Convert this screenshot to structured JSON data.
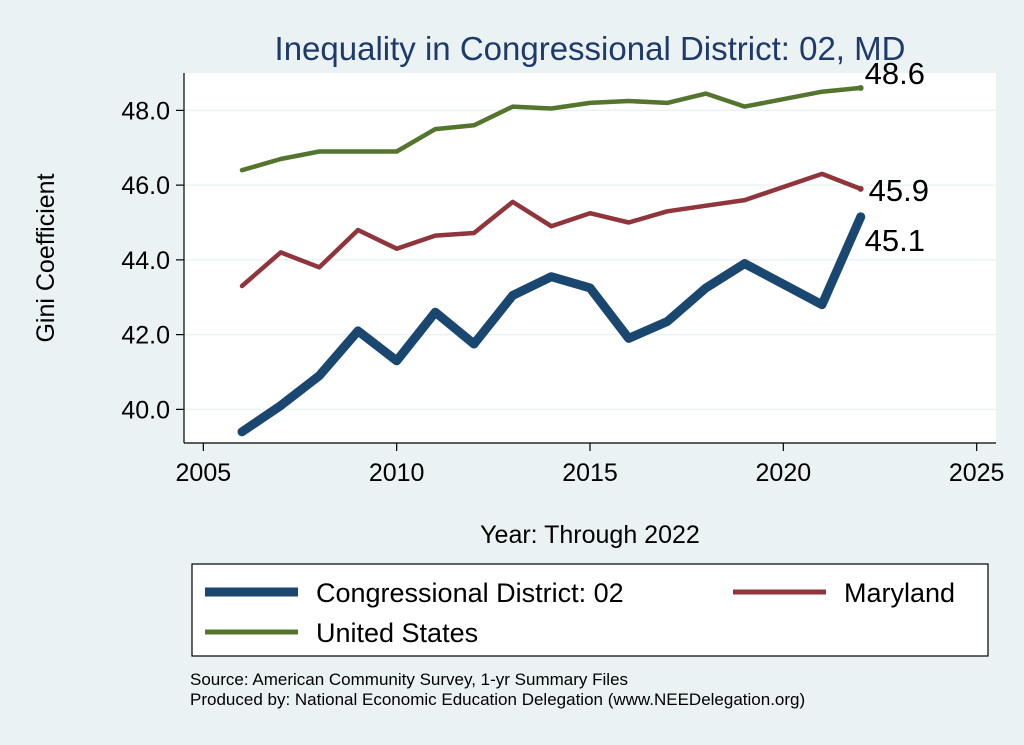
{
  "chart_data": {
    "type": "line",
    "title": "Inequality in Congressional District:  02, MD",
    "xlabel": "Year: Through 2022",
    "ylabel": "Gini Coefficient",
    "xlim": [
      2004.5,
      2025.5
    ],
    "ylim": [
      39.1,
      49.0
    ],
    "x_ticks": [
      2005,
      2010,
      2015,
      2020,
      2025
    ],
    "y_ticks": [
      40.0,
      42.0,
      44.0,
      46.0,
      48.0
    ],
    "y_tick_labels": [
      "40.0",
      "42.0",
      "44.0",
      "46.0",
      "48.0"
    ],
    "grid": true,
    "x": [
      2006,
      2007,
      2008,
      2009,
      2010,
      2011,
      2012,
      2013,
      2014,
      2015,
      2016,
      2017,
      2018,
      2019,
      2021,
      2022
    ],
    "series": [
      {
        "name": "Congressional District:  02",
        "color": "#1a476f",
        "values": [
          39.4,
          40.1,
          40.9,
          42.1,
          41.3,
          42.6,
          41.75,
          43.05,
          43.55,
          43.25,
          41.9,
          42.35,
          43.25,
          43.9,
          42.8,
          45.15
        ],
        "end_label": "45.1"
      },
      {
        "name": "Maryland",
        "color": "#90353b",
        "values": [
          43.3,
          44.2,
          43.8,
          44.8,
          44.3,
          44.65,
          44.72,
          45.55,
          44.9,
          45.25,
          45.0,
          45.3,
          45.45,
          45.6,
          46.3,
          45.9
        ],
        "end_label": "45.9"
      },
      {
        "name": "United States",
        "color": "#55752f",
        "values": [
          46.4,
          46.7,
          46.9,
          46.9,
          46.9,
          47.5,
          47.6,
          48.1,
          48.05,
          48.2,
          48.25,
          48.2,
          48.45,
          48.1,
          48.5,
          48.6
        ],
        "end_label": "48.6"
      }
    ],
    "legend": [
      {
        "name": "Congressional District:  02",
        "color": "#1a476f"
      },
      {
        "name": "Maryland",
        "color": "#90353b"
      },
      {
        "name": "United States",
        "color": "#55752f"
      }
    ],
    "legend_position": "bottom"
  },
  "notes": {
    "source": "Source: American Community Survey, 1-yr Summary Files",
    "produced_by": "Produced by: National Economic Education Delegation (www.NEEDelegation.org)"
  }
}
